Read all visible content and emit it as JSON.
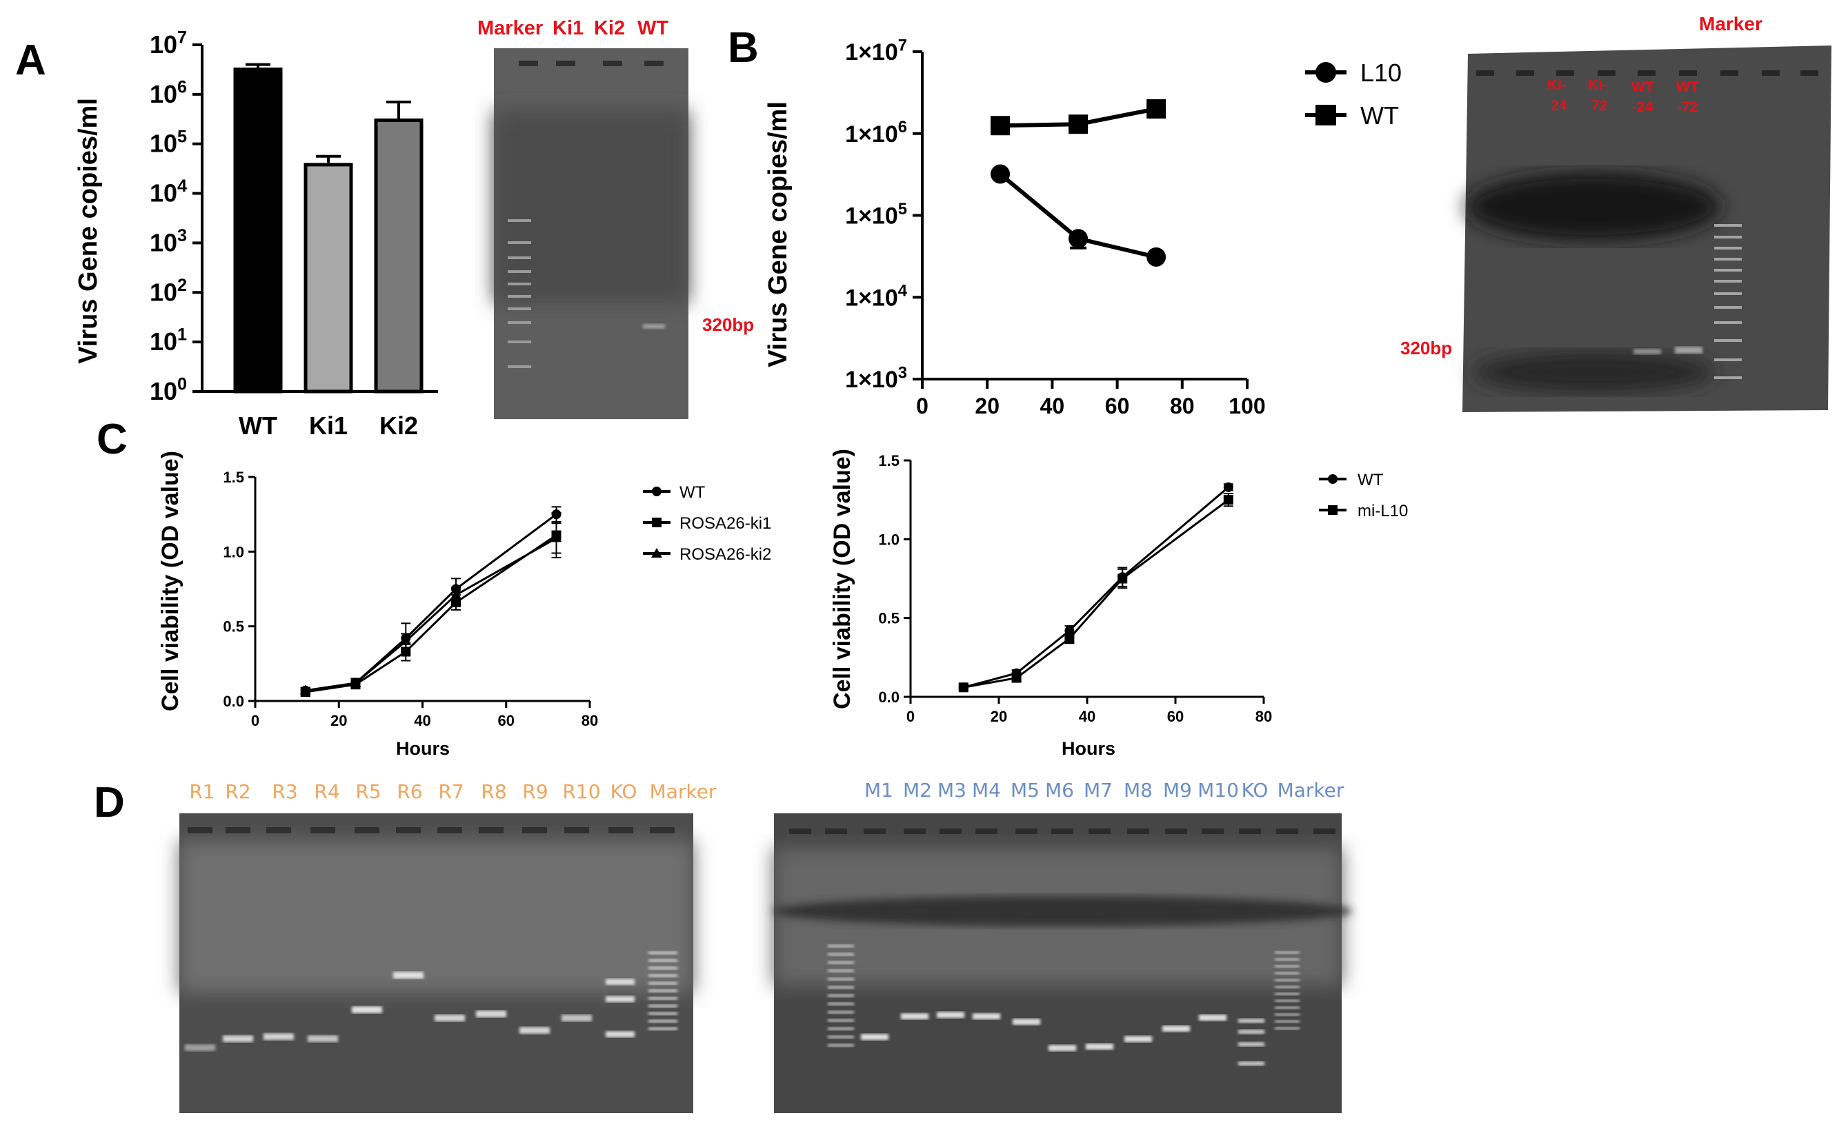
{
  "panels": {
    "A": "A",
    "B": "B",
    "C": "C",
    "D": "D"
  },
  "chart_data": [
    {
      "id": "A-bar",
      "type": "bar",
      "scale": "log",
      "ylabel": "Virus Gene copies/ml",
      "categories": [
        "WT",
        "Ki1",
        "Ki2"
      ],
      "values": [
        3200000,
        38000,
        300000
      ],
      "errors": [
        800000,
        18000,
        400000
      ],
      "colors": [
        "#000000",
        "#a8a8a8",
        "#7a7a7a"
      ],
      "ylim": [
        1,
        10000000
      ],
      "yticks": [
        {
          "v": 1,
          "base": "10",
          "exp": "0"
        },
        {
          "v": 10,
          "base": "10",
          "exp": "1"
        },
        {
          "v": 100,
          "base": "10",
          "exp": "2"
        },
        {
          "v": 1000,
          "base": "10",
          "exp": "3"
        },
        {
          "v": 10000,
          "base": "10",
          "exp": "4"
        },
        {
          "v": 100000,
          "base": "10",
          "exp": "5"
        },
        {
          "v": 1000000,
          "base": "10",
          "exp": "6"
        },
        {
          "v": 10000000,
          "base": "10",
          "exp": "7"
        }
      ]
    },
    {
      "id": "B-line",
      "type": "line",
      "scale": "log",
      "ylabel": "Virus Gene copies/ml",
      "xlim": [
        0,
        100
      ],
      "xticks": [
        "0",
        "20",
        "40",
        "60",
        "80",
        "100"
      ],
      "ylim": [
        1000,
        10000000
      ],
      "yticks": [
        {
          "v": 1000,
          "label": "1×10",
          "exp": "3"
        },
        {
          "v": 10000,
          "label": "1×10",
          "exp": "4"
        },
        {
          "v": 100000,
          "label": "1×10",
          "exp": "5"
        },
        {
          "v": 1000000,
          "label": "1×10",
          "exp": "6"
        },
        {
          "v": 10000000,
          "label": "1×10",
          "exp": "7"
        }
      ],
      "series": [
        {
          "name": "L10",
          "marker": "circle",
          "x": [
            24,
            48,
            72
          ],
          "y": [
            320000,
            52000,
            31000
          ],
          "err": [
            0,
            12000,
            0
          ]
        },
        {
          "name": "WT",
          "marker": "square",
          "x": [
            24,
            48,
            72
          ],
          "y": [
            1250000,
            1300000,
            2000000
          ],
          "err": [
            0,
            0,
            0
          ]
        }
      ]
    },
    {
      "id": "C-left",
      "type": "line",
      "ylabel": "Cell viability (OD value)",
      "xlabel": "Hours",
      "xlim": [
        0,
        80
      ],
      "ylim": [
        0,
        1.5
      ],
      "xticks": [
        "0",
        "20",
        "40",
        "60",
        "80"
      ],
      "yticks": [
        "0.0",
        "0.5",
        "1.0",
        "1.5"
      ],
      "series": [
        {
          "name": "WT",
          "marker": "circle",
          "x": [
            12,
            24,
            36,
            48,
            72
          ],
          "y": [
            0.07,
            0.12,
            0.42,
            0.75,
            1.25
          ],
          "err": [
            0.02,
            0.03,
            0.1,
            0.07,
            0.05
          ]
        },
        {
          "name": "ROSA26-ki1",
          "marker": "square",
          "x": [
            12,
            24,
            36,
            48,
            72
          ],
          "y": [
            0.06,
            0.11,
            0.33,
            0.66,
            1.11
          ],
          "err": [
            0.02,
            0.02,
            0.06,
            0.05,
            0.15
          ]
        },
        {
          "name": "ROSA26-ki2",
          "marker": "triangle",
          "x": [
            12,
            24,
            36,
            48,
            72
          ],
          "y": [
            0.07,
            0.12,
            0.4,
            0.71,
            1.09
          ],
          "err": [
            0.02,
            0.02,
            0.05,
            0.05,
            0.1
          ]
        }
      ]
    },
    {
      "id": "C-right",
      "type": "line",
      "ylabel": "Cell viability (OD value)",
      "xlabel": "Hours",
      "xlim": [
        0,
        80
      ],
      "ylim": [
        0,
        1.5
      ],
      "xticks": [
        "0",
        "20",
        "40",
        "60",
        "80"
      ],
      "yticks": [
        "0.0",
        "0.5",
        "1.0",
        "1.5"
      ],
      "series": [
        {
          "name": "WT",
          "marker": "circle",
          "x": [
            12,
            24,
            36,
            48,
            72
          ],
          "y": [
            0.06,
            0.15,
            0.42,
            0.76,
            1.33
          ],
          "err": [
            0.01,
            0.02,
            0.03,
            0.06,
            0.02
          ]
        },
        {
          "name": "mi-L10",
          "marker": "square",
          "x": [
            12,
            24,
            36,
            48,
            72
          ],
          "y": [
            0.06,
            0.12,
            0.37,
            0.75,
            1.25
          ],
          "err": [
            0.01,
            0.02,
            0.03,
            0.06,
            0.04
          ]
        }
      ]
    }
  ],
  "gel_A": {
    "lanes": [
      "Marker",
      "Ki1",
      "Ki2",
      "WT"
    ],
    "band_label": "320bp"
  },
  "gel_B": {
    "marker": "Marker",
    "lanes": [
      "Ki-24",
      "Ki-72",
      "WT-24",
      "WT-72"
    ],
    "lane_text": [
      [
        "Ki-",
        "24"
      ],
      [
        "Ki-",
        "72"
      ],
      [
        "WT",
        "-24"
      ],
      [
        "WT",
        "-72"
      ]
    ],
    "band_label": "320bp"
  },
  "gel_D1": {
    "lanes": [
      "R1",
      "R2",
      "R3",
      "R4",
      "R5",
      "R6",
      "R7",
      "R8",
      "R9",
      "R10",
      "KO",
      "Marker"
    ],
    "color": "#f2a45a"
  },
  "gel_D2": {
    "lanes": [
      "M1",
      "M2",
      "M3",
      "M4",
      "M5",
      "M6",
      "M7",
      "M8",
      "M9",
      "M10",
      "KO",
      "Marker"
    ],
    "color": "#6b8ec4"
  }
}
